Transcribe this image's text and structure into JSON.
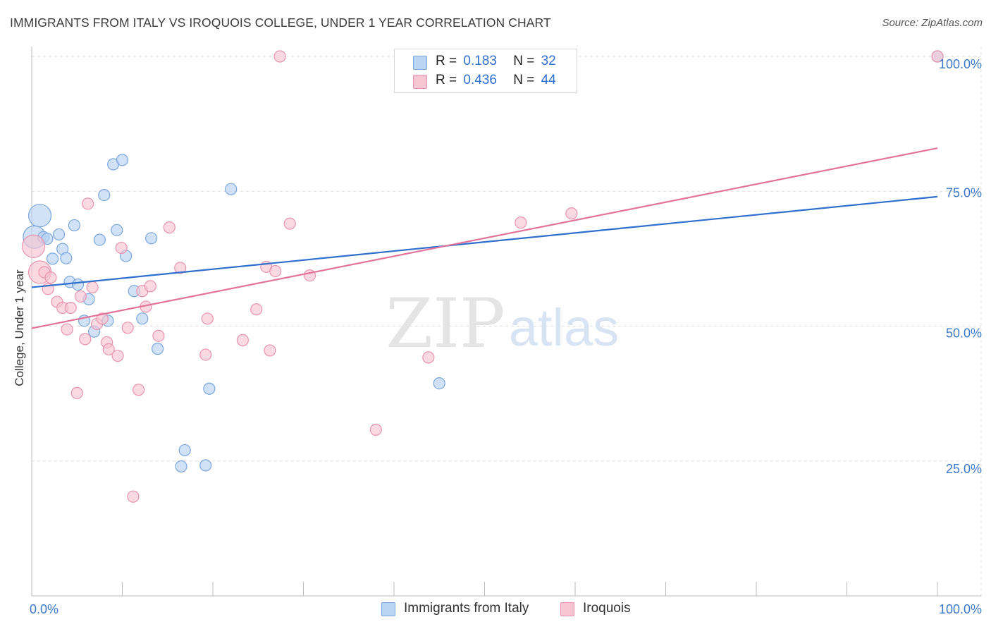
{
  "title": "IMMIGRANTS FROM ITALY VS IROQUOIS COLLEGE, UNDER 1 YEAR CORRELATION CHART",
  "source": "Source: ZipAtlas.com",
  "watermark": {
    "zip": "ZIP",
    "atlas": "atlas"
  },
  "colors": {
    "blue_fill": "#b9d3f3",
    "blue_stroke": "#7ba7dd",
    "blue_line": "#2f6fce",
    "pink_fill": "#f8c5d3",
    "pink_stroke": "#e994ae",
    "pink_line": "#e2739a",
    "tick_label": "#3c78c8",
    "grid": "#dddddd"
  },
  "legend": {
    "rows": [
      {
        "r_label": "R =",
        "r_value": "0.183",
        "n_label": "N =",
        "n_value": "32"
      },
      {
        "r_label": "R =",
        "r_value": "0.436",
        "n_label": "N =",
        "n_value": "44"
      }
    ]
  },
  "bottom_legend": {
    "series1": "Immigrants from Italy",
    "series2": "Iroquois"
  },
  "chart_data": {
    "type": "scatter",
    "xlabel": "",
    "ylabel": "College, Under 1 year",
    "xlim": [
      0,
      100
    ],
    "ylim": [
      0,
      100
    ],
    "x_tick_labels": [
      {
        "value": 0,
        "label": "0.0%"
      },
      {
        "value": 100,
        "label": "100.0%"
      }
    ],
    "y_tick_labels": [
      {
        "value": 25,
        "label": "25.0%"
      },
      {
        "value": 50,
        "label": "50.0%"
      },
      {
        "value": 75,
        "label": "75.0%"
      },
      {
        "value": 100,
        "label": "100.0%"
      }
    ],
    "grid": true,
    "legend_position": "top-center",
    "series": [
      {
        "name": "Immigrants from Italy",
        "points": [
          [
            0.3,
            66.5
          ],
          [
            0.9,
            70.5
          ],
          [
            1.3,
            66.5
          ],
          [
            1.7,
            66.2
          ],
          [
            2.3,
            62.5
          ],
          [
            3.0,
            67.0
          ],
          [
            3.4,
            64.3
          ],
          [
            3.8,
            62.6
          ],
          [
            4.2,
            58.2
          ],
          [
            4.7,
            68.7
          ],
          [
            5.1,
            57.7
          ],
          [
            5.8,
            51.0
          ],
          [
            6.3,
            55.0
          ],
          [
            6.9,
            49.0
          ],
          [
            7.5,
            66.0
          ],
          [
            8.0,
            74.3
          ],
          [
            8.4,
            51.0
          ],
          [
            9.0,
            80.0
          ],
          [
            9.4,
            67.8
          ],
          [
            10.0,
            80.8
          ],
          [
            10.4,
            63.0
          ],
          [
            11.3,
            56.5
          ],
          [
            12.2,
            51.4
          ],
          [
            13.2,
            66.3
          ],
          [
            13.9,
            45.8
          ],
          [
            16.5,
            24.0
          ],
          [
            16.9,
            27.0
          ],
          [
            19.2,
            24.2
          ],
          [
            19.6,
            38.4
          ],
          [
            22.0,
            75.4
          ],
          [
            45.0,
            39.4
          ],
          [
            100.0,
            100.0
          ]
        ],
        "trend": {
          "x": [
            0,
            100
          ],
          "y": [
            57.2,
            74.0
          ]
        }
      },
      {
        "name": "Iroquois",
        "points": [
          [
            0.2,
            64.8
          ],
          [
            0.9,
            60.0
          ],
          [
            1.4,
            60.0
          ],
          [
            1.8,
            56.9
          ],
          [
            2.1,
            59.0
          ],
          [
            2.8,
            54.5
          ],
          [
            3.4,
            53.4
          ],
          [
            3.9,
            49.4
          ],
          [
            4.3,
            53.4
          ],
          [
            5.0,
            37.6
          ],
          [
            5.4,
            55.5
          ],
          [
            5.9,
            47.6
          ],
          [
            6.2,
            72.7
          ],
          [
            6.7,
            57.2
          ],
          [
            7.2,
            50.4
          ],
          [
            7.8,
            51.4
          ],
          [
            8.3,
            47.0
          ],
          [
            8.5,
            45.7
          ],
          [
            9.5,
            44.5
          ],
          [
            9.9,
            64.5
          ],
          [
            10.6,
            49.7
          ],
          [
            11.2,
            18.4
          ],
          [
            11.8,
            38.2
          ],
          [
            12.2,
            56.5
          ],
          [
            12.6,
            53.6
          ],
          [
            13.1,
            57.4
          ],
          [
            14.0,
            48.2
          ],
          [
            15.2,
            68.3
          ],
          [
            16.4,
            60.8
          ],
          [
            19.2,
            44.7
          ],
          [
            19.4,
            51.4
          ],
          [
            23.3,
            47.4
          ],
          [
            24.8,
            53.1
          ],
          [
            25.9,
            61.0
          ],
          [
            26.3,
            45.5
          ],
          [
            26.9,
            60.2
          ],
          [
            27.4,
            100.0
          ],
          [
            28.5,
            69.0
          ],
          [
            30.7,
            59.4
          ],
          [
            38.0,
            30.8
          ],
          [
            43.8,
            44.2
          ],
          [
            54.0,
            69.2
          ],
          [
            59.6,
            70.9
          ],
          [
            100.0,
            100.0
          ]
        ],
        "trend": {
          "x": [
            0,
            100
          ],
          "y": [
            49.6,
            83.0
          ]
        }
      }
    ]
  }
}
